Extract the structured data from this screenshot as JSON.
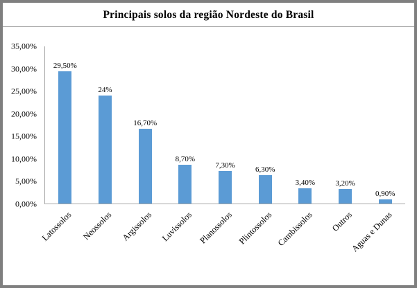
{
  "chart_data": {
    "type": "bar",
    "title": "Principais  solos da região Nordeste do Brasil",
    "categories": [
      "Latossolos",
      "Neossolos",
      "Argissolos",
      "Luvissolos",
      "Planossolos",
      "Plintossolos",
      "Cambissolos",
      "Outros",
      "Aguas e Dunas"
    ],
    "values": [
      29.5,
      24,
      16.7,
      8.7,
      7.3,
      6.3,
      3.4,
      3.2,
      0.9
    ],
    "data_labels": [
      "29,50%",
      "24%",
      "16,70%",
      "8,70%",
      "7,30%",
      "6,30%",
      "3,40%",
      "3,20%",
      "0,90%"
    ],
    "y_ticks": [
      "35,00%",
      "30,00%",
      "25,00%",
      "20,00%",
      "15,00%",
      "10,00%",
      "5,00%",
      "0,00%"
    ],
    "ylim": [
      0,
      35
    ],
    "xlabel": "",
    "ylabel": "",
    "grid": false,
    "legend": false,
    "bar_color": "#5b9bd5",
    "axis_color": "#a6a6a6"
  }
}
